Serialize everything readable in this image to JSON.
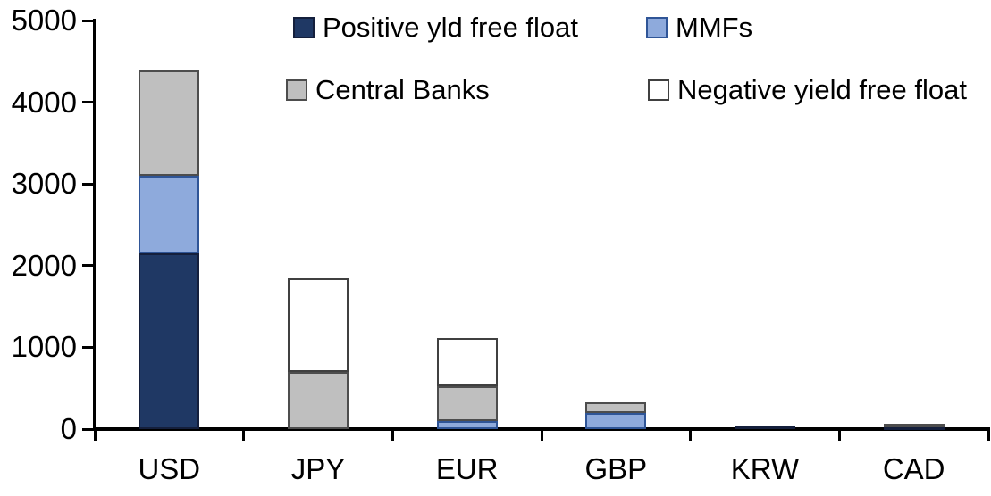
{
  "chart_data": {
    "type": "bar",
    "stacked": true,
    "title": "",
    "xlabel": "",
    "ylabel": "",
    "grid": false,
    "legend_position": "top-inside",
    "categories": [
      "USD",
      "JPY",
      "EUR",
      "GBP",
      "KRW",
      "CAD"
    ],
    "series": [
      {
        "name": "Positive yld free float",
        "color": "#1F3864",
        "border_color": "#141F3C",
        "values": [
          2150,
          0,
          0,
          0,
          45,
          30
        ]
      },
      {
        "name": "MMFs",
        "color": "#8EAADC",
        "border_color": "#2F5597",
        "values": [
          950,
          0,
          100,
          200,
          0,
          0
        ]
      },
      {
        "name": "Central Banks",
        "color": "#BFBFBF",
        "border_color": "#4D4D4D",
        "values": [
          1290,
          700,
          425,
          130,
          0,
          35
        ]
      },
      {
        "name": "Negative yield free float",
        "color": "#FFFFFF",
        "border_color": "#404040",
        "values": [
          0,
          1150,
          585,
          0,
          0,
          0
        ]
      }
    ],
    "ylim": [
      0,
      5000
    ],
    "yticks": [
      0,
      1000,
      2000,
      3000,
      4000,
      5000
    ],
    "axis_color": "#000000"
  }
}
